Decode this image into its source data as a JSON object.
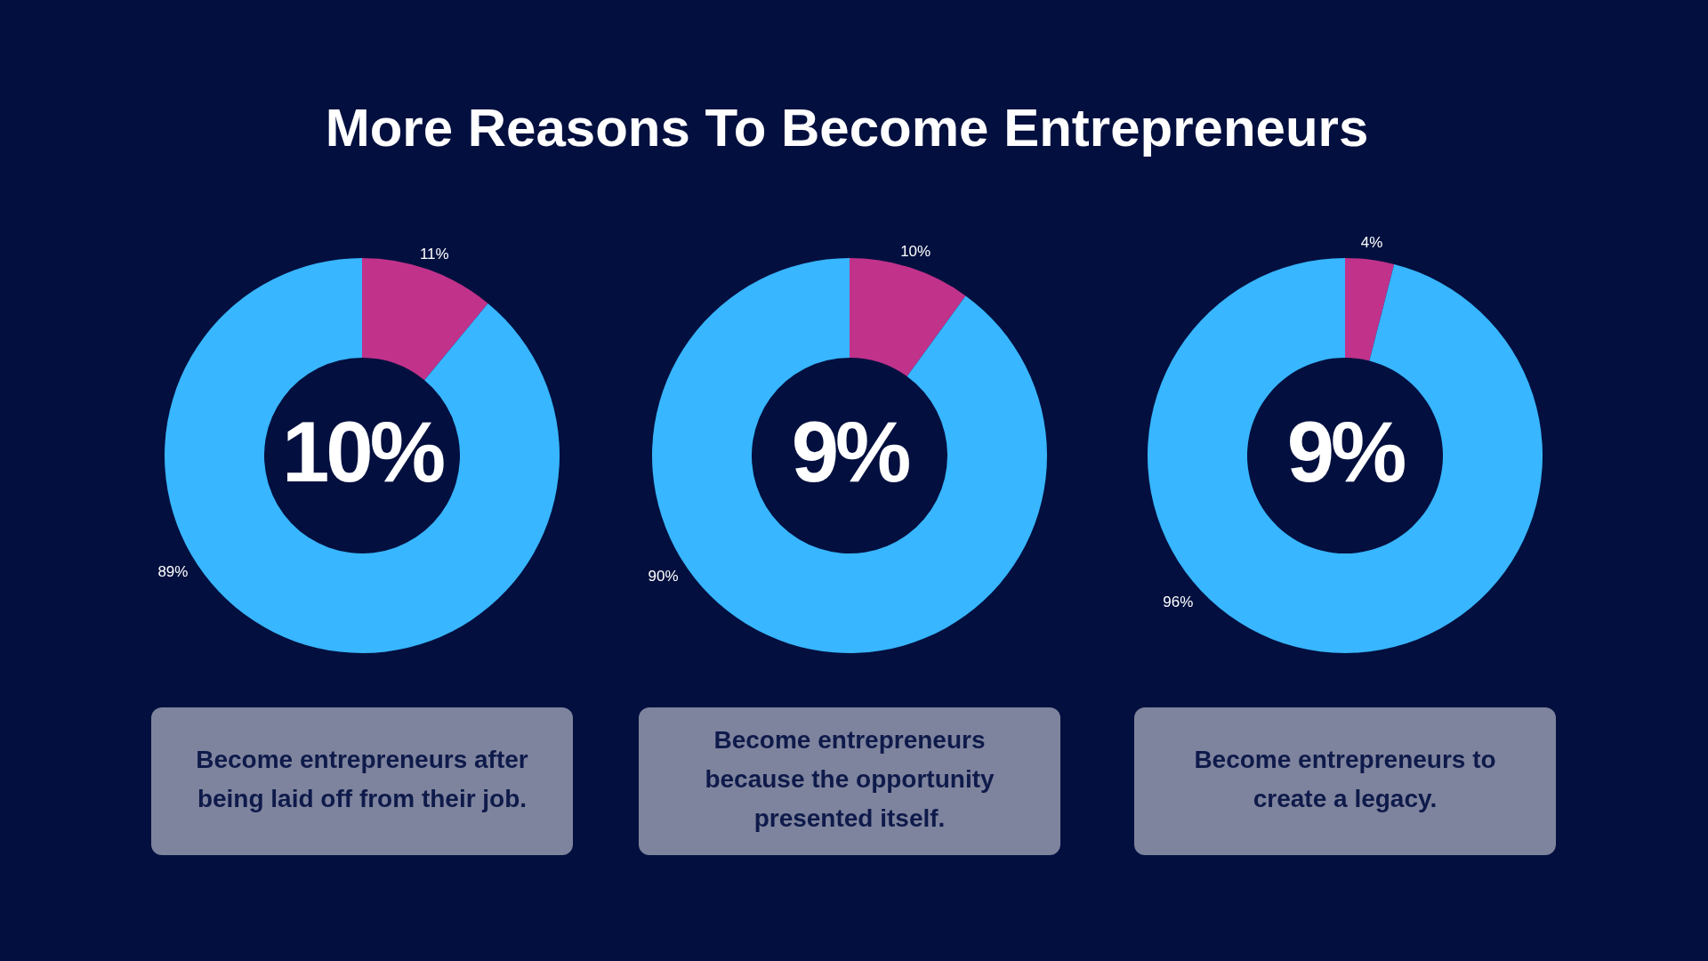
{
  "chart_data": [
    {
      "type": "donut",
      "title": "More Reasons To Become Entrepreneurs",
      "categories": [
        null,
        null
      ],
      "values": [
        11,
        89
      ],
      "colors": [
        "#c1328b",
        "#38b6ff"
      ],
      "value_labels": [
        "11%",
        "89%"
      ],
      "annotations": [
        "10%",
        "Become entrepreneurs after being laid off from their job."
      ]
    },
    {
      "type": "donut",
      "categories": [
        null,
        null
      ],
      "values": [
        10,
        90
      ],
      "colors": [
        "#c1328b",
        "#38b6ff"
      ],
      "value_labels": [
        "10%",
        "90%"
      ],
      "annotations": [
        "9%",
        "Become entrepreneurs because the opportunity presented itself."
      ]
    },
    {
      "type": "donut",
      "categories": [
        null,
        null
      ],
      "values": [
        4,
        96
      ],
      "colors": [
        "#c1328b",
        "#38b6ff"
      ],
      "value_labels": [
        "4%",
        "96%"
      ],
      "annotations": [
        "9%",
        "Become entrepreneurs to create a legacy."
      ]
    }
  ]
}
